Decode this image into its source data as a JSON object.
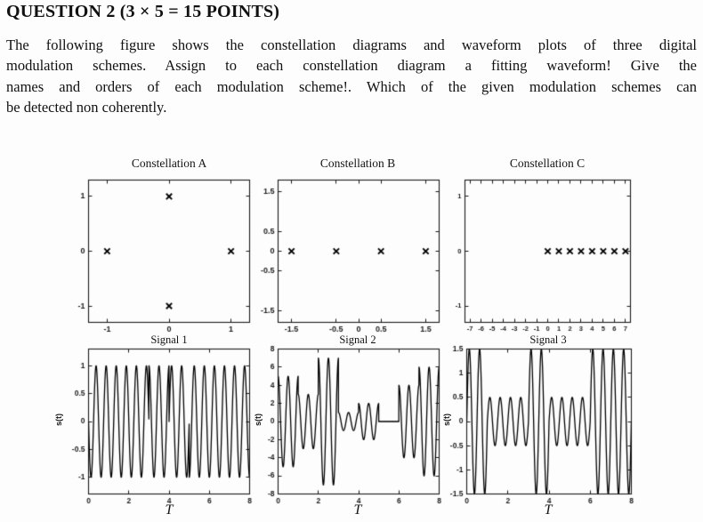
{
  "document": {
    "heading": "QUESTION 2 (3 × 5 = 15 POINTS)",
    "paragraph_lines": [
      "The following figure shows the constellation diagrams and waveform plots of three digital",
      "modulation schemes. Assign to each constellation diagram a fitting waveform! Give the",
      "names and orders of each modulation scheme!. Which of the given modulation schemes can",
      "be detected non coherently."
    ]
  },
  "chart_data": [
    {
      "id": "constellation-a",
      "type": "scatter",
      "title": "Constellation A",
      "xlim": [
        -1.3,
        1.3
      ],
      "ylim": [
        -1.3,
        1.3
      ],
      "xticks": [
        -1,
        0,
        1
      ],
      "yticks": [
        1,
        0,
        -1
      ],
      "points": [
        [
          0,
          1
        ],
        [
          -1,
          0
        ],
        [
          1,
          0
        ],
        [
          0,
          -1
        ]
      ]
    },
    {
      "id": "constellation-b",
      "type": "scatter",
      "title": "Constellation B",
      "xlim": [
        -1.8,
        1.8
      ],
      "ylim": [
        -1.8,
        1.8
      ],
      "xticks": [
        -1.5,
        -0.5,
        0,
        0.5,
        1.5
      ],
      "yticks": [
        1.5,
        0.5,
        0,
        -0.5,
        -1.5
      ],
      "points": [
        [
          -1.5,
          0
        ],
        [
          -0.5,
          0
        ],
        [
          0.5,
          0
        ],
        [
          1.5,
          0
        ]
      ]
    },
    {
      "id": "constellation-c",
      "type": "scatter",
      "title": "Constellation C",
      "xlim": [
        -7.45,
        7.45
      ],
      "ylim": [
        -1.3,
        1.3
      ],
      "xticks": [
        -7,
        -6,
        -5,
        -4,
        -3,
        -2,
        -1,
        0,
        1,
        2,
        3,
        4,
        5,
        6,
        7
      ],
      "yticks": [
        1,
        0,
        -1
      ],
      "points": [
        [
          0,
          0
        ],
        [
          1,
          0
        ],
        [
          2,
          0
        ],
        [
          3,
          0
        ],
        [
          4,
          0
        ],
        [
          5,
          0
        ],
        [
          6,
          0
        ],
        [
          7,
          0
        ]
      ]
    },
    {
      "id": "signal-1",
      "type": "line",
      "title": "Signal 1",
      "xlabel": "T",
      "ylabel": "s(t)",
      "xlim": [
        0,
        8
      ],
      "ylim": [
        -1.3,
        1.3
      ],
      "xticks": [
        0,
        2,
        4,
        6,
        8
      ],
      "yticks": [
        1,
        0.5,
        0,
        -0.5,
        -1
      ],
      "wave": {
        "kind": "psk",
        "carrier": "sin",
        "cycles_per_symbol": 2,
        "amplitude": 1,
        "symbol_phases_deg": [
          180,
          180,
          180,
          90,
          0,
          270,
          270,
          270
        ]
      }
    },
    {
      "id": "signal-2",
      "type": "line",
      "title": "Signal 2",
      "xlabel": "T",
      "ylabel": "s(t)",
      "xlim": [
        0,
        8
      ],
      "ylim": [
        -8,
        8
      ],
      "xticks": [
        0,
        2,
        4,
        6,
        8
      ],
      "yticks": [
        8,
        6,
        4,
        2,
        0,
        -2,
        -4,
        -6,
        -8
      ],
      "wave": {
        "kind": "ask",
        "carrier": "cos",
        "cycles_per_symbol": 2,
        "symbol_amplitudes": [
          5,
          3,
          7,
          1,
          2,
          0,
          4,
          6
        ]
      }
    },
    {
      "id": "signal-3",
      "type": "line",
      "title": "Signal 3",
      "xlabel": "T",
      "ylabel": "s(t)",
      "xlim": [
        0,
        8
      ],
      "ylim": [
        -1.5,
        1.5
      ],
      "xticks": [
        0,
        2,
        4,
        6,
        8
      ],
      "yticks": [
        1.5,
        1,
        0.5,
        0,
        -0.5,
        -1,
        -1.5
      ],
      "wave": {
        "kind": "ask",
        "carrier": "sin",
        "cycles_per_symbol": 2,
        "symbol_amplitudes": [
          1.5,
          0.5,
          0.5,
          1.5,
          0.5,
          0.5,
          1.5,
          1.5
        ]
      }
    }
  ]
}
